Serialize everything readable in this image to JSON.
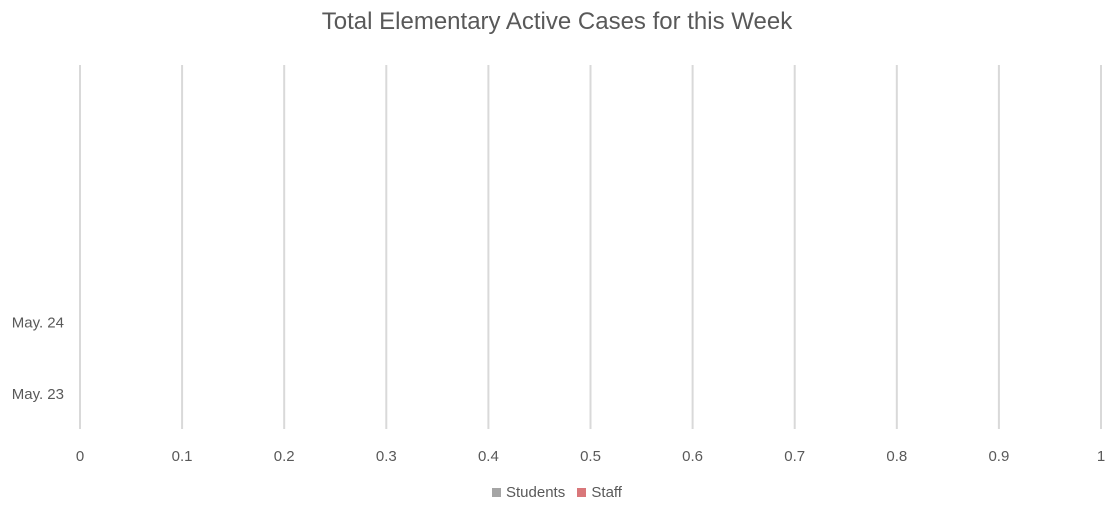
{
  "chart_data": {
    "type": "bar",
    "orientation": "horizontal",
    "title": "Total Elementary Active Cases for this Week",
    "categories": [
      "May. 23",
      "May. 24"
    ],
    "series": [
      {
        "name": "Students",
        "values": [
          0,
          0
        ],
        "color": "#A5A5A5"
      },
      {
        "name": "Staff",
        "values": [
          0,
          0
        ],
        "color": "#D9777A"
      }
    ],
    "xlim": [
      0,
      1
    ],
    "x_ticks": [
      "0",
      "0.1",
      "0.2",
      "0.3",
      "0.4",
      "0.5",
      "0.6",
      "0.7",
      "0.8",
      "0.9",
      "1"
    ],
    "grid": true,
    "legend_position": "bottom",
    "gridline_color": "#D9D9D9"
  }
}
